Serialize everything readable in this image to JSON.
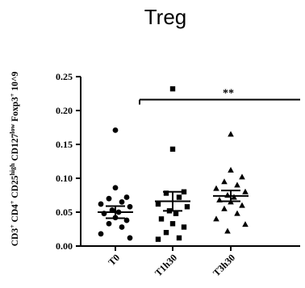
{
  "chart_data": {
    "type": "scatter",
    "title": "Treg",
    "ylabel": "CD3⁺ CD4⁺ CD25ʰⁱᵍʰ CD127ˡᵒʷ Foxp3⁺ 10^9",
    "ylim": [
      0,
      0.25
    ],
    "yticks": [
      "0.00",
      "0.05",
      "0.10",
      "0.15",
      "0.20",
      "0.25"
    ],
    "categories": [
      "T0",
      "T1h30",
      "T3h30"
    ],
    "series": [
      {
        "category": "T0",
        "marker": "circle",
        "values": [
          0.171,
          0.086,
          0.072,
          0.07,
          0.065,
          0.062,
          0.058,
          0.053,
          0.05,
          0.048,
          0.042,
          0.038,
          0.033,
          0.028,
          0.018,
          0.012
        ],
        "mean": 0.05,
        "sem_upper": 0.059,
        "sem_lower": 0.041
      },
      {
        "category": "T1h30",
        "marker": "square",
        "values": [
          0.232,
          0.143,
          0.08,
          0.078,
          0.072,
          0.062,
          0.058,
          0.052,
          0.048,
          0.04,
          0.033,
          0.028,
          0.02,
          0.012,
          0.01
        ],
        "mean": 0.066,
        "sem_upper": 0.08,
        "sem_lower": 0.052
      },
      {
        "category": "T3h30",
        "marker": "triangle",
        "values": [
          0.165,
          0.112,
          0.102,
          0.095,
          0.09,
          0.085,
          0.08,
          0.075,
          0.072,
          0.068,
          0.065,
          0.06,
          0.055,
          0.048,
          0.04,
          0.032,
          0.022
        ],
        "mean": 0.074,
        "sem_upper": 0.082,
        "sem_lower": 0.066
      }
    ],
    "annotation": {
      "text": "**",
      "from": "T0",
      "to": "T3h30",
      "y": 0.216
    }
  }
}
